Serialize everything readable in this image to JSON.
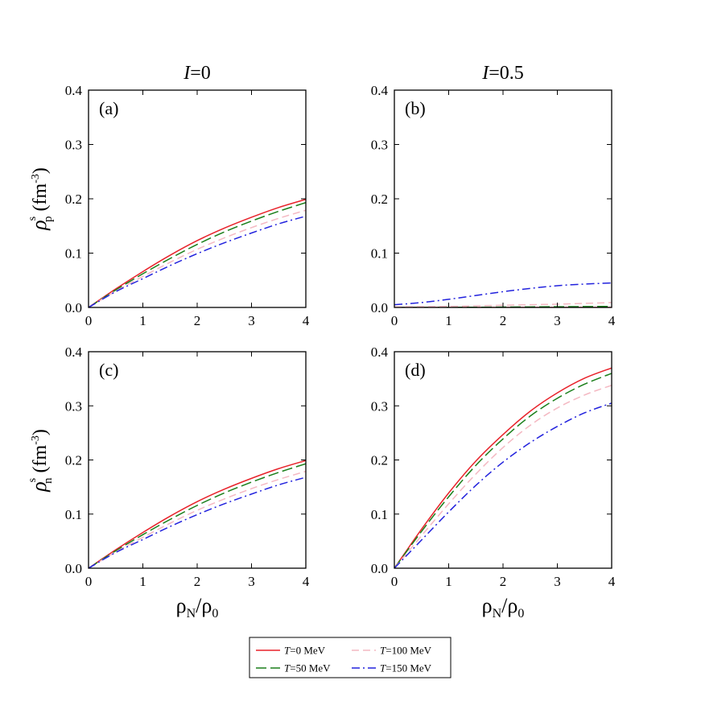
{
  "chart_data": {
    "type": "line",
    "column_titles": [
      {
        "var": "I",
        "rest": "=0"
      },
      {
        "var": "I",
        "rest": "=0.5"
      }
    ],
    "ylabel_top": {
      "rho": "ρ",
      "sup": "s",
      "sub": "p",
      "unit": "(fm",
      "unit_sup": "-3",
      "unit_close": ")"
    },
    "ylabel_bottom": {
      "rho": "ρ",
      "sup": "s",
      "sub": "n",
      "unit": "(fm",
      "unit_sup": "-3",
      "unit_close": ")"
    },
    "xlabel": {
      "rho": "ρ",
      "sub": "N",
      "slash": "/ρ",
      "sub2": "0"
    },
    "xlim": [
      0,
      4
    ],
    "ylim": [
      0,
      0.4
    ],
    "x_ticks": [
      "0",
      "1",
      "2",
      "3",
      "4"
    ],
    "y_ticks": [
      "0.0",
      "0.1",
      "0.2",
      "0.3",
      "0.4"
    ],
    "x": [
      0,
      0.5,
      1,
      1.5,
      2,
      2.5,
      3,
      3.5,
      4
    ],
    "legend": [
      {
        "var": "T",
        "rest": "=0 MeV",
        "color": "#e8222a",
        "dash": "none"
      },
      {
        "var": "T",
        "rest": "=100 MeV",
        "color": "#f4b8c2",
        "dash": "9,5"
      },
      {
        "var": "T",
        "rest": "=50 MeV",
        "color": "#1a7f1a",
        "dash": "13,5"
      },
      {
        "var": "T",
        "rest": "=150 MeV",
        "color": "#2222dd",
        "dash": "10,4,2,4"
      }
    ],
    "panels": [
      {
        "label": "(a)",
        "series": [
          {
            "name": "T=0 MeV",
            "values": [
              0,
              0.034,
              0.066,
              0.096,
              0.123,
              0.146,
              0.166,
              0.184,
              0.199
            ]
          },
          {
            "name": "T=50 MeV",
            "values": [
              0,
              0.032,
              0.062,
              0.09,
              0.116,
              0.139,
              0.159,
              0.177,
              0.193
            ]
          },
          {
            "name": "T=100 MeV",
            "values": [
              0,
              0.03,
              0.057,
              0.083,
              0.107,
              0.128,
              0.147,
              0.164,
              0.179
            ]
          },
          {
            "name": "T=150 MeV",
            "values": [
              0,
              0.029,
              0.053,
              0.077,
              0.099,
              0.119,
              0.137,
              0.154,
              0.168
            ]
          }
        ]
      },
      {
        "label": "(b)",
        "series": [
          {
            "name": "T=0 MeV",
            "values": [
              0,
              0,
              0,
              0,
              0,
              0,
              0,
              0,
              0
            ]
          },
          {
            "name": "T=50 MeV",
            "values": [
              0,
              0,
              0.0002,
              0.0004,
              0.0007,
              0.001,
              0.0013,
              0.0016,
              0.002
            ]
          },
          {
            "name": "T=100 MeV",
            "values": [
              0.001,
              0.0015,
              0.002,
              0.003,
              0.004,
              0.005,
              0.006,
              0.0075,
              0.009
            ]
          },
          {
            "name": "T=150 MeV",
            "values": [
              0.005,
              0.009,
              0.015,
              0.022,
              0.029,
              0.035,
              0.04,
              0.043,
              0.045
            ]
          }
        ]
      },
      {
        "label": "(c)",
        "series": [
          {
            "name": "T=0 MeV",
            "values": [
              0,
              0.034,
              0.066,
              0.096,
              0.123,
              0.146,
              0.166,
              0.184,
              0.199
            ]
          },
          {
            "name": "T=50 MeV",
            "values": [
              0,
              0.032,
              0.062,
              0.09,
              0.116,
              0.139,
              0.159,
              0.177,
              0.193
            ]
          },
          {
            "name": "T=100 MeV",
            "values": [
              0,
              0.03,
              0.057,
              0.083,
              0.107,
              0.128,
              0.147,
              0.164,
              0.179
            ]
          },
          {
            "name": "T=150 MeV",
            "values": [
              0,
              0.029,
              0.053,
              0.077,
              0.099,
              0.119,
              0.137,
              0.154,
              0.168
            ]
          }
        ]
      },
      {
        "label": "(d)",
        "series": [
          {
            "name": "T=0 MeV",
            "values": [
              0,
              0.072,
              0.139,
              0.198,
              0.247,
              0.29,
              0.324,
              0.351,
              0.37
            ]
          },
          {
            "name": "T=50 MeV",
            "values": [
              0,
              0.068,
              0.132,
              0.19,
              0.239,
              0.281,
              0.314,
              0.34,
              0.36
            ]
          },
          {
            "name": "T=100 MeV",
            "values": [
              0,
              0.06,
              0.119,
              0.174,
              0.223,
              0.264,
              0.296,
              0.32,
              0.338
            ]
          },
          {
            "name": "T=150 MeV",
            "values": [
              0,
              0.052,
              0.104,
              0.153,
              0.196,
              0.232,
              0.262,
              0.287,
              0.305
            ]
          }
        ]
      }
    ]
  }
}
